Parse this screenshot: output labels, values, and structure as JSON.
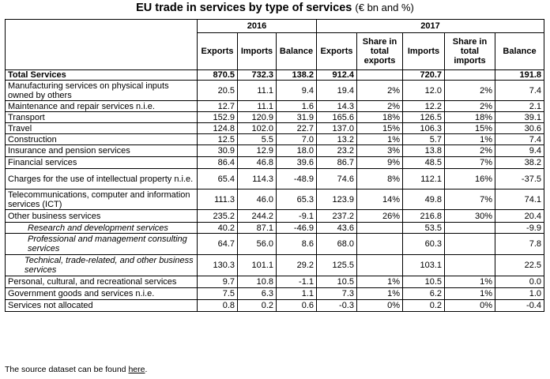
{
  "title": {
    "main": "EU trade in services by type of services",
    "unit": "(€ bn and %)"
  },
  "years": [
    "2016",
    "2017"
  ],
  "columns_2016": [
    "Exports",
    "Imports",
    "Balance"
  ],
  "columns_2017": [
    "Exports",
    "Share in total exports",
    "Imports",
    "Share in total imports",
    "Balance"
  ],
  "rows": [
    {
      "label": "Total Services",
      "style": "total",
      "v": [
        "870.5",
        "732.3",
        "138.2",
        "912.4",
        "",
        "720.7",
        "",
        "191.8"
      ]
    },
    {
      "label": "Manufacturing services on physical inputs owned by others",
      "style": "normal",
      "v": [
        "20.5",
        "11.1",
        "9.4",
        "19.4",
        "2%",
        "12.0",
        "2%",
        "7.4"
      ]
    },
    {
      "label": "Maintenance and repair services n.i.e.",
      "style": "normal",
      "v": [
        "12.7",
        "11.1",
        "1.6",
        "14.3",
        "2%",
        "12.2",
        "2%",
        "2.1"
      ]
    },
    {
      "label": "Transport",
      "style": "normal",
      "v": [
        "152.9",
        "120.9",
        "31.9",
        "165.6",
        "18%",
        "126.5",
        "18%",
        "39.1"
      ]
    },
    {
      "label": "Travel",
      "style": "normal",
      "v": [
        "124.8",
        "102.0",
        "22.7",
        "137.0",
        "15%",
        "106.3",
        "15%",
        "30.6"
      ]
    },
    {
      "label": "Construction",
      "style": "normal",
      "v": [
        "12.5",
        "5.5",
        "7.0",
        "13.2",
        "1%",
        "5.7",
        "1%",
        "7.4"
      ]
    },
    {
      "label": "Insurance and pension services",
      "style": "normal",
      "v": [
        "30.9",
        "12.9",
        "18.0",
        "23.2",
        "3%",
        "13.8",
        "2%",
        "9.4"
      ]
    },
    {
      "label": "Financial services",
      "style": "normal",
      "v": [
        "86.4",
        "46.8",
        "39.6",
        "86.7",
        "9%",
        "48.5",
        "7%",
        "38.2"
      ]
    },
    {
      "label": "Charges for the use of intellectual property n.i.e.",
      "style": "normal",
      "v": [
        "65.4",
        "114.3",
        "-48.9",
        "74.6",
        "8%",
        "112.1",
        "16%",
        "-37.5"
      ]
    },
    {
      "label": "Telecommunications, computer and information services (ICT)",
      "style": "normal",
      "v": [
        "111.3",
        "46.0",
        "65.3",
        "123.9",
        "14%",
        "49.8",
        "7%",
        "74.1"
      ]
    },
    {
      "label": "Other business services",
      "style": "normal",
      "v": [
        "235.2",
        "244.2",
        "-9.1",
        "237.2",
        "26%",
        "216.8",
        "30%",
        "20.4"
      ]
    },
    {
      "label": "Research and development services",
      "style": "sub",
      "v": [
        "40.2",
        "87.1",
        "-46.9",
        "43.6",
        "",
        "53.5",
        "",
        "-9.9"
      ]
    },
    {
      "label": "Professional and management consulting services",
      "style": "sub",
      "v": [
        "64.7",
        "56.0",
        "8.6",
        "68.0",
        "",
        "60.3",
        "",
        "7.8"
      ]
    },
    {
      "label": "Technical, trade-related, and other business services",
      "style": "sub2",
      "v": [
        "130.3",
        "101.1",
        "29.2",
        "125.5",
        "",
        "103.1",
        "",
        "22.5"
      ]
    },
    {
      "label": "Personal, cultural, and recreational services",
      "style": "normal",
      "v": [
        "9.7",
        "10.8",
        "-1.1",
        "10.5",
        "1%",
        "10.5",
        "1%",
        "0.0"
      ]
    },
    {
      "label": "Government goods and services n.i.e.",
      "style": "normal",
      "v": [
        "7.5",
        "6.3",
        "1.1",
        "7.3",
        "1%",
        "6.2",
        "1%",
        "1.0"
      ]
    },
    {
      "label": "Services not allocated",
      "style": "normal",
      "v": [
        "0.8",
        "0.2",
        "0.6",
        "-0.3",
        "0%",
        "0.2",
        "0%",
        "-0.4"
      ]
    }
  ],
  "footnote": {
    "prefix": "The source dataset can be found ",
    "link": "here",
    "suffix": "."
  }
}
